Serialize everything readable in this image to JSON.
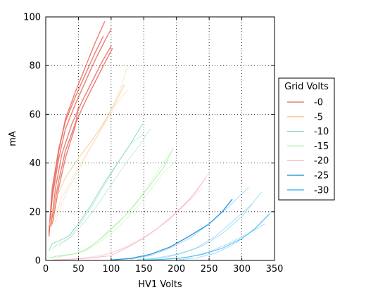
{
  "chart_data": {
    "type": "line",
    "xlabel": "HV1 Volts",
    "ylabel": "mA",
    "xlim": [
      0,
      350
    ],
    "ylim": [
      0,
      100
    ],
    "xticks": [
      "0",
      "50",
      "100",
      "150",
      "200",
      "250",
      "300",
      "350"
    ],
    "yticks": [
      "0",
      "20",
      "40",
      "60",
      "80",
      "100"
    ],
    "grid": "dotted",
    "legend": {
      "title": "Grid Volts",
      "placement": "outside-right",
      "entries": [
        "-0",
        "-5",
        "-10",
        "-15",
        "-20",
        "-25",
        "-30"
      ]
    },
    "series": [
      {
        "name": "-0",
        "color": "#e8665a",
        "bold": true,
        "curves": [
          {
            "x": [
              5,
              10,
              20,
              30,
              45,
              60,
              75,
              90
            ],
            "y": [
              10,
              28,
              45,
              58,
              69,
              79,
              89,
              98
            ]
          },
          {
            "x": [
              5,
              10,
              20,
              30,
              45,
              60,
              75,
              90,
              100
            ],
            "y": [
              11,
              26,
              42,
              54,
              64,
              73,
              82,
              90,
              95
            ]
          },
          {
            "x": [
              5,
              10,
              20,
              30,
              45,
              60,
              75,
              88
            ],
            "y": [
              12,
              30,
              46,
              57,
              67,
              76,
              85,
              92
            ]
          },
          {
            "x": [
              8,
              15,
              25,
              40,
              55,
              70,
              85,
              100
            ],
            "y": [
              14,
              30,
              44,
              56,
              65,
              73,
              81,
              88
            ]
          },
          {
            "x": [
              10,
              20,
              30,
              45,
              60,
              75,
              90,
              102
            ],
            "y": [
              18,
              33,
              45,
              56,
              65,
              73,
              81,
              87
            ]
          },
          {
            "x": [
              10,
              20,
              30,
              45,
              50
            ],
            "y": [
              15,
              30,
              42,
              55,
              63
            ]
          }
        ]
      },
      {
        "name": "-5",
        "color": "#f5c98d",
        "bold": false,
        "curves": [
          {
            "x": [
              5,
              15,
              30,
              50,
              70,
              90,
              105,
              120
            ],
            "y": [
              14,
              25,
              34,
              42,
              49,
              57,
              64,
              72
            ]
          },
          {
            "x": [
              10,
              25,
              45,
              65,
              85,
              100,
              115,
              125
            ],
            "y": [
              15,
              26,
              36,
              45,
              54,
              62,
              71,
              80
            ]
          },
          {
            "x": [
              15,
              30,
              50,
              70,
              90,
              110,
              125
            ],
            "y": [
              16,
              27,
              37,
              47,
              56,
              65,
              70
            ]
          }
        ]
      },
      {
        "name": "-10",
        "color": "#7fd9b4",
        "bold": false,
        "curves": [
          {
            "x": [
              5,
              10,
              20,
              35,
              50,
              70,
              90,
              110,
              130,
              148
            ],
            "y": [
              4,
              7,
              8,
              10,
              15,
              23,
              32,
              40,
              48,
              56
            ]
          },
          {
            "x": [
              10,
              20,
              35,
              50,
              70,
              90,
              110,
              130,
              150
            ],
            "y": [
              5,
              7,
              9,
              14,
              22,
              31,
              40,
              48,
              52
            ]
          },
          {
            "x": [
              20,
              40,
              60,
              80,
              100,
              120,
              140,
              160
            ],
            "y": [
              6,
              10,
              16,
              23,
              31,
              39,
              46,
              54
            ]
          }
        ]
      },
      {
        "name": "-15",
        "color": "#a8f0a0",
        "bold": false,
        "curves": [
          {
            "x": [
              5,
              20,
              40,
              60,
              80,
              100,
              120,
              140,
              160,
              180,
              195
            ],
            "y": [
              1,
              2,
              2.5,
              4,
              8,
              13,
              18,
              24,
              31,
              38,
              46
            ]
          },
          {
            "x": [
              10,
              30,
              50,
              70,
              90,
              110,
              130,
              150,
              170,
              190
            ],
            "y": [
              1,
              2,
              3,
              6,
              10,
              15,
              21,
              28,
              36,
              44
            ]
          },
          {
            "x": [
              20,
              40,
              60,
              80,
              100,
              120,
              140,
              160,
              180,
              200
            ],
            "y": [
              1.5,
              2.5,
              4,
              7,
              11,
              16,
              22,
              29,
              36,
              41
            ]
          }
        ]
      },
      {
        "name": "-20",
        "color": "#f7b7c6",
        "bold": false,
        "curves": [
          {
            "x": [
              10,
              40,
              70,
              100,
              130,
              160,
              190,
              220,
              245
            ],
            "y": [
              0.2,
              0.5,
              1,
              2,
              6,
              11,
              17,
              25,
              34
            ]
          },
          {
            "x": [
              20,
              50,
              80,
              110,
              140,
              170,
              200,
              230,
              250
            ],
            "y": [
              0.3,
              0.6,
              1.5,
              4,
              8,
              13,
              20,
              28,
              36
            ]
          },
          {
            "x": [
              30,
              60,
              90,
              120,
              150,
              180,
              210,
              240
            ],
            "y": [
              0.4,
              1,
              2.5,
              5,
              9,
              15,
              22,
              30
            ]
          }
        ]
      },
      {
        "name": "-25",
        "color": "#0f86d8",
        "bold": true,
        "curves": [
          {
            "x": [
              100,
              130,
              160,
              190,
              220,
              250,
              270,
              285
            ],
            "y": [
              0.2,
              0.8,
              2.5,
              5.5,
              10,
              15,
              20,
              25
            ]
          }
        ]
      },
      {
        "name": "-30",
        "color": "#3ab6f0",
        "bold": false,
        "curves": [
          {
            "x": [
              150,
              180,
              210,
              240,
              270,
              300,
              320,
              342
            ],
            "y": [
              0.1,
              0.5,
              1,
              2.5,
              5,
              9,
              13,
              19
            ]
          },
          {
            "x": [
              160,
              190,
              220,
              250,
              280,
              310,
              335
            ],
            "y": [
              0.2,
              0.6,
              1.5,
              3.5,
              7,
              11,
              15
            ]
          },
          {
            "x": [
              140,
              170,
              200,
              230,
              260,
              290,
              315
            ],
            "y": [
              0.3,
              1,
              2.5,
              5,
              10,
              17,
              23
            ]
          },
          {
            "x": [
              130,
              160,
              190,
              220,
              250,
              280,
              310
            ],
            "y": [
              0.5,
              2,
              5,
              9,
              15,
              22,
              30
            ]
          },
          {
            "x": [
              150,
              180,
              210,
              240,
              270,
              300,
              330
            ],
            "y": [
              0.3,
              1,
              3,
              6,
              11,
              18,
              28
            ]
          },
          {
            "x": [
              200,
              230,
              260,
              290,
              320,
              345
            ],
            "y": [
              0.2,
              1,
              3,
              7,
              13,
              20
            ]
          }
        ]
      }
    ]
  }
}
